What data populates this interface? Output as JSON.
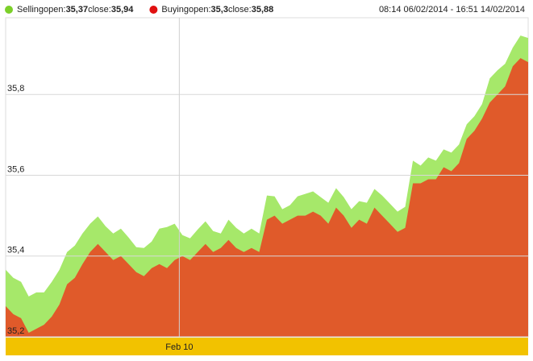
{
  "chart_data": {
    "type": "area",
    "date_range": "08:14 06/02/2014 - 16:51 14/02/2014",
    "open_label": "open:",
    "close_label": "close:",
    "series": [
      {
        "name": "Selling",
        "color": "#a6e86a",
        "open": {
          "value": 35.37,
          "label": "35,37"
        },
        "close": {
          "value": 35.94,
          "label": "35,94"
        },
        "legend_color": "#7cd02a",
        "values": [
          35.366,
          35.346,
          35.336,
          35.3,
          35.31,
          35.31,
          35.336,
          35.366,
          35.41,
          35.426,
          35.456,
          35.48,
          35.498,
          35.474,
          35.456,
          35.468,
          35.446,
          35.422,
          35.42,
          35.436,
          35.468,
          35.472,
          35.48,
          35.452,
          35.444,
          35.466,
          35.486,
          35.462,
          35.456,
          35.49,
          35.47,
          35.456,
          35.468,
          35.456,
          35.55,
          35.548,
          35.516,
          35.526,
          35.548,
          35.554,
          35.56,
          35.546,
          35.532,
          35.568,
          35.546,
          35.516,
          35.536,
          35.532,
          35.566,
          35.55,
          35.53,
          35.51,
          35.522,
          35.636,
          35.624,
          35.644,
          35.636,
          35.664,
          35.656,
          35.676,
          35.726,
          35.746,
          35.776,
          35.84,
          35.86,
          35.876,
          35.916,
          35.946,
          35.94
        ]
      },
      {
        "name": "Buying",
        "color": "#e05a2a",
        "open": {
          "value": 35.3,
          "label": "35,3"
        },
        "close": {
          "value": 35.88,
          "label": "35,88"
        },
        "legend_color": "#e01010",
        "values": [
          35.276,
          35.256,
          35.246,
          35.21,
          35.22,
          35.23,
          35.25,
          35.28,
          35.33,
          35.346,
          35.38,
          35.41,
          35.43,
          35.41,
          35.39,
          35.4,
          35.38,
          35.36,
          35.35,
          35.37,
          35.38,
          35.37,
          35.39,
          35.4,
          35.39,
          35.41,
          35.43,
          35.41,
          35.42,
          35.44,
          35.42,
          35.41,
          35.42,
          35.41,
          35.49,
          35.5,
          35.48,
          35.49,
          35.5,
          35.5,
          35.51,
          35.5,
          35.48,
          35.52,
          35.5,
          35.47,
          35.49,
          35.48,
          35.52,
          35.5,
          35.48,
          35.46,
          35.47,
          35.58,
          35.58,
          35.59,
          35.59,
          35.62,
          35.61,
          35.63,
          35.69,
          35.71,
          35.74,
          35.78,
          35.8,
          35.82,
          35.87,
          35.89,
          35.88
        ]
      }
    ],
    "ylim": [
      35.2,
      35.99
    ],
    "yticks": [
      {
        "value": 35.2,
        "label": "35,2"
      },
      {
        "value": 35.4,
        "label": "35,4"
      },
      {
        "value": 35.6,
        "label": "35,6"
      },
      {
        "value": 35.8,
        "label": "35,8"
      }
    ],
    "xlim": [
      0,
      68
    ],
    "xticks": [
      {
        "value": 22.6,
        "label": "Feb 10"
      }
    ],
    "grid": true
  }
}
